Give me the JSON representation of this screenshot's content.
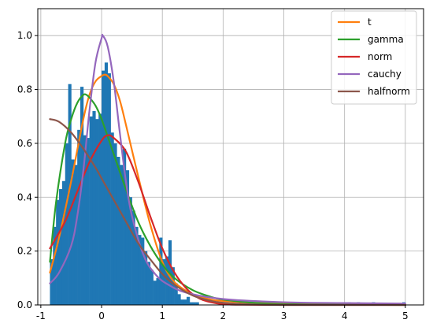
{
  "chart_data": {
    "type": "histogram",
    "title": "",
    "xlabel": "",
    "ylabel": "",
    "xlim": [
      -1.05,
      5.3
    ],
    "ylim": [
      0,
      1.1
    ],
    "grid": true,
    "legend_position": "top-right",
    "x_ticks": [
      -1,
      0,
      1,
      2,
      3,
      4,
      5
    ],
    "y_ticks": [
      0.0,
      0.2,
      0.4,
      0.6,
      0.8,
      1.0
    ],
    "x_tick_labels": [
      "-1",
      "0",
      "1",
      "2",
      "3",
      "4",
      "5"
    ],
    "y_tick_labels": [
      "0.0",
      "0.2",
      "0.4",
      "0.6",
      "0.8",
      "1.0"
    ],
    "histogram": {
      "color": "#1f77b4",
      "bin_width": 0.05,
      "bins": [
        [
          -0.85,
          0.17
        ],
        [
          -0.8,
          0.29
        ],
        [
          -0.75,
          0.39
        ],
        [
          -0.7,
          0.43
        ],
        [
          -0.65,
          0.46
        ],
        [
          -0.6,
          0.6
        ],
        [
          -0.55,
          0.82
        ],
        [
          -0.5,
          0.54
        ],
        [
          -0.45,
          0.52
        ],
        [
          -0.4,
          0.65
        ],
        [
          -0.35,
          0.81
        ],
        [
          -0.3,
          0.63
        ],
        [
          -0.25,
          0.62
        ],
        [
          -0.2,
          0.7
        ],
        [
          -0.15,
          0.72
        ],
        [
          -0.1,
          0.69
        ],
        [
          -0.05,
          0.71
        ],
        [
          0.0,
          0.87
        ],
        [
          0.05,
          0.9
        ],
        [
          0.1,
          0.86
        ],
        [
          0.15,
          0.64
        ],
        [
          0.2,
          0.6
        ],
        [
          0.25,
          0.55
        ],
        [
          0.3,
          0.52
        ],
        [
          0.35,
          0.58
        ],
        [
          0.4,
          0.5
        ],
        [
          0.45,
          0.4
        ],
        [
          0.5,
          0.35
        ],
        [
          0.55,
          0.29
        ],
        [
          0.6,
          0.26
        ],
        [
          0.65,
          0.25
        ],
        [
          0.7,
          0.2
        ],
        [
          0.75,
          0.16
        ],
        [
          0.8,
          0.13
        ],
        [
          0.85,
          0.09
        ],
        [
          0.9,
          0.1
        ],
        [
          0.95,
          0.25
        ],
        [
          1.0,
          0.17
        ],
        [
          1.05,
          0.18
        ],
        [
          1.1,
          0.24
        ],
        [
          1.15,
          0.14
        ],
        [
          1.2,
          0.08
        ],
        [
          1.25,
          0.04
        ],
        [
          1.3,
          0.02
        ],
        [
          1.35,
          0.02
        ],
        [
          1.4,
          0.03
        ],
        [
          1.45,
          0.01
        ],
        [
          1.5,
          0.01
        ],
        [
          1.55,
          0.01
        ],
        [
          2.85,
          0.01
        ],
        [
          3.0,
          0.01
        ],
        [
          3.1,
          0.01
        ],
        [
          3.5,
          0.01
        ],
        [
          3.6,
          0.01
        ],
        [
          4.05,
          0.01
        ],
        [
          4.2,
          0.01
        ],
        [
          4.45,
          0.01
        ],
        [
          4.95,
          0.01
        ]
      ]
    },
    "series": [
      {
        "name": "t",
        "color": "#ff7f0e",
        "x": [
          -0.85,
          -0.7,
          -0.5,
          -0.3,
          -0.2,
          -0.1,
          0.0,
          0.05,
          0.1,
          0.2,
          0.3,
          0.4,
          0.6,
          0.8,
          1.0,
          1.2,
          1.5,
          1.8,
          2.0,
          2.5,
          3.0,
          4.0,
          5.0
        ],
        "y": [
          0.12,
          0.25,
          0.46,
          0.69,
          0.78,
          0.83,
          0.85,
          0.855,
          0.85,
          0.82,
          0.76,
          0.67,
          0.48,
          0.3,
          0.16,
          0.085,
          0.04,
          0.02,
          0.015,
          0.008,
          0.006,
          0.004,
          0.003
        ]
      },
      {
        "name": "gamma",
        "color": "#2ca02c",
        "x": [
          -0.85,
          -0.75,
          -0.6,
          -0.5,
          -0.4,
          -0.3,
          -0.25,
          -0.2,
          -0.1,
          0.0,
          0.2,
          0.4,
          0.6,
          0.8,
          1.0,
          1.2,
          1.5,
          1.8,
          2.0,
          2.5,
          3.0,
          4.0,
          5.0
        ],
        "y": [
          0.16,
          0.38,
          0.6,
          0.69,
          0.75,
          0.78,
          0.78,
          0.77,
          0.74,
          0.69,
          0.56,
          0.43,
          0.31,
          0.22,
          0.15,
          0.1,
          0.055,
          0.03,
          0.02,
          0.008,
          0.003,
          0.001,
          0.0
        ]
      },
      {
        "name": "norm",
        "color": "#d62728",
        "x": [
          -0.85,
          -0.6,
          -0.4,
          -0.2,
          0.0,
          0.1,
          0.2,
          0.4,
          0.6,
          0.8,
          1.0,
          1.2,
          1.4,
          1.6,
          1.8,
          2.0,
          2.3,
          3.0,
          4.0,
          5.0
        ],
        "y": [
          0.21,
          0.31,
          0.42,
          0.53,
          0.61,
          0.63,
          0.62,
          0.57,
          0.46,
          0.33,
          0.21,
          0.12,
          0.06,
          0.025,
          0.01,
          0.003,
          0.001,
          0.0,
          0.0,
          0.0
        ]
      },
      {
        "name": "cauchy",
        "color": "#9467bd",
        "x": [
          -0.85,
          -0.7,
          -0.5,
          -0.4,
          -0.3,
          -0.2,
          -0.1,
          0.0,
          0.02,
          0.1,
          0.2,
          0.3,
          0.4,
          0.5,
          0.7,
          0.9,
          1.1,
          1.4,
          2.0,
          3.0,
          4.0,
          5.0
        ],
        "y": [
          0.08,
          0.12,
          0.22,
          0.33,
          0.5,
          0.72,
          0.9,
          0.99,
          1.0,
          0.96,
          0.83,
          0.64,
          0.46,
          0.33,
          0.18,
          0.11,
          0.075,
          0.045,
          0.022,
          0.01,
          0.007,
          0.005
        ]
      },
      {
        "name": "halfnorm",
        "color": "#8c564b",
        "x": [
          -0.85,
          -0.7,
          -0.5,
          -0.3,
          -0.1,
          0.0,
          0.2,
          0.4,
          0.6,
          0.8,
          1.0,
          1.2,
          1.5,
          1.8,
          2.0,
          2.5,
          3.0,
          4.0,
          5.0
        ],
        "y": [
          0.69,
          0.68,
          0.64,
          0.58,
          0.51,
          0.47,
          0.39,
          0.31,
          0.23,
          0.17,
          0.115,
          0.075,
          0.035,
          0.015,
          0.008,
          0.002,
          0.0,
          0.0,
          0.0
        ]
      }
    ]
  }
}
